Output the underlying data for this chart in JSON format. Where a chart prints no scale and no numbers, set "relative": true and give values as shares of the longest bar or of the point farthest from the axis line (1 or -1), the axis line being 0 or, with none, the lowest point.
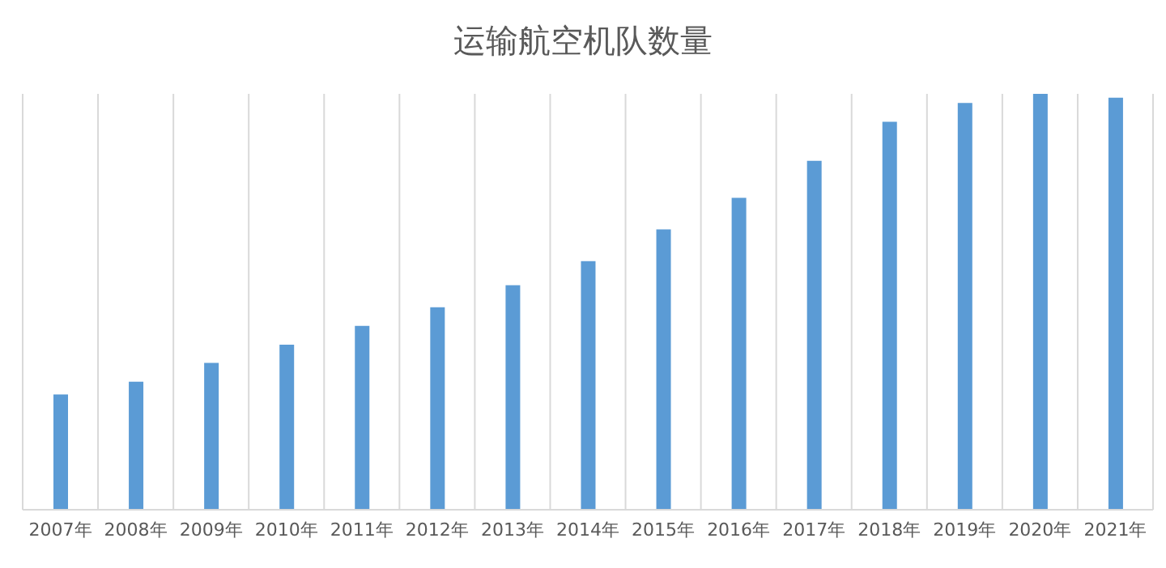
{
  "chart_data": {
    "type": "bar",
    "title": "运输航空机队数量",
    "relative": true,
    "grid": "x",
    "color": "#5b9bd5",
    "categories": [
      "2007年",
      "2008年",
      "2009年",
      "2010年",
      "2011年",
      "2012年",
      "2013年",
      "2014年",
      "2015年",
      "2016年",
      "2017年",
      "2018年",
      "2019年",
      "2020年",
      "2021年"
    ],
    "values": [
      0.277,
      0.308,
      0.353,
      0.397,
      0.442,
      0.487,
      0.54,
      0.598,
      0.674,
      0.75,
      0.839,
      0.933,
      0.978,
      1,
      0.991
    ]
  }
}
